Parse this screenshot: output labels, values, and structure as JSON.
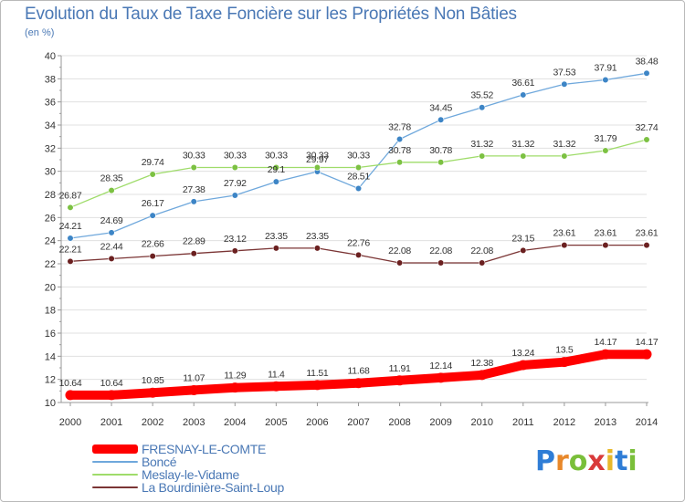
{
  "title": "Evolution du Taux de Taxe Foncière sur les Propriétés Non Bâties",
  "unit_label": "(en %)",
  "logo": {
    "letters": [
      "P",
      "r",
      "o",
      "x",
      "i",
      "t",
      "i"
    ],
    "colors": [
      "#2f7dd6",
      "#e8882a",
      "#7abf3a",
      "#d93a3a",
      "#e8b82a",
      "#2f7dd6",
      "#7abf3a"
    ]
  },
  "colors": {
    "axis": "#999999",
    "tick_label": "#333333",
    "grid": "#e0e0e0",
    "label": "#333333"
  },
  "chart_data": {
    "type": "line",
    "x": [
      2000,
      2001,
      2002,
      2003,
      2004,
      2005,
      2006,
      2007,
      2008,
      2009,
      2010,
      2011,
      2012,
      2013,
      2014
    ],
    "ylim": [
      10,
      40
    ],
    "yticks": [
      10,
      12,
      14,
      16,
      18,
      20,
      22,
      24,
      26,
      28,
      30,
      32,
      34,
      36,
      38,
      40
    ],
    "grid": "horizontal",
    "legend_position": "bottom-left",
    "series": [
      {
        "name": "FRESNAY-LE-COMTE",
        "color": "#ff0000",
        "marker_color": "#ff0000",
        "legend_thickness": "thick",
        "values": [
          10.64,
          10.64,
          10.85,
          11.07,
          11.29,
          11.4,
          11.51,
          11.68,
          11.91,
          12.14,
          12.38,
          13.24,
          13.5,
          14.17,
          14.17
        ],
        "labels": [
          "10.64",
          "10.64",
          "10.85",
          "11.07",
          "11.29",
          "11.4",
          "11.51",
          "11.68",
          "11.91",
          "12.14",
          "12.38",
          "13.24",
          "13.5",
          "14.17",
          "14.17"
        ]
      },
      {
        "name": "Boncé",
        "color": "#6fa8dc",
        "marker_color": "#3d85c6",
        "legend_thickness": "thin",
        "values": [
          24.21,
          24.69,
          26.17,
          27.38,
          27.92,
          29.1,
          29.97,
          28.51,
          32.78,
          34.45,
          35.52,
          36.61,
          37.53,
          37.91,
          38.48
        ],
        "labels": [
          "24.21",
          "24.69",
          "26.17",
          "27.38",
          "27.92",
          "29.1",
          "29.97",
          "28.51",
          "32.78",
          "34.45",
          "35.52",
          "36.61",
          "37.53",
          "37.91",
          "38.48"
        ]
      },
      {
        "name": "Meslay-le-Vidame",
        "color": "#9fdc6a",
        "marker_color": "#7cc142",
        "legend_thickness": "thin",
        "values": [
          26.87,
          28.35,
          29.74,
          30.33,
          30.33,
          30.33,
          30.33,
          30.33,
          30.78,
          30.78,
          31.32,
          31.32,
          31.32,
          31.79,
          32.74
        ],
        "labels": [
          "26.87",
          "28.35",
          "29.74",
          "30.33",
          "30.33",
          "30.33",
          "30.33",
          "30.33",
          "30.78",
          "30.78",
          "31.32",
          "31.32",
          "31.32",
          "31.79",
          "32.74"
        ]
      },
      {
        "name": "La Bourdinière-Saint-Loup",
        "color": "#7b3535",
        "marker_color": "#6b2020",
        "legend_thickness": "thin",
        "values": [
          22.21,
          22.44,
          22.66,
          22.89,
          23.12,
          23.35,
          23.35,
          22.76,
          22.08,
          22.08,
          22.08,
          23.15,
          23.61,
          23.61,
          23.61
        ],
        "labels": [
          "22.21",
          "22.44",
          "22.66",
          "22.89",
          "23.12",
          "23.35",
          "23.35",
          "22.76",
          "22.08",
          "22.08",
          "22.08",
          "23.15",
          "23.61",
          "23.61",
          "23.61"
        ]
      }
    ]
  }
}
